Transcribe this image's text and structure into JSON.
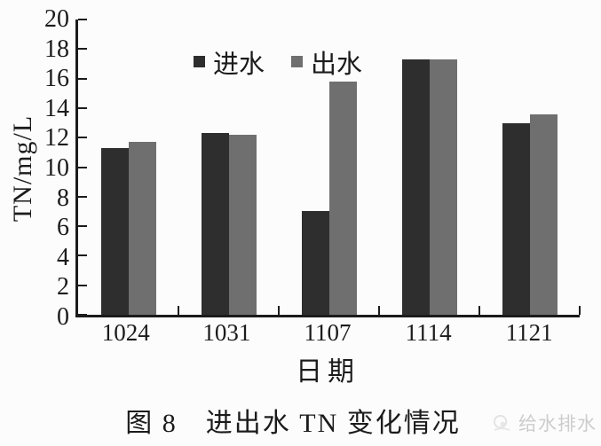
{
  "figure": {
    "caption": "图 8　进出水 TN 变化情况",
    "watermark": "给水排水"
  },
  "chart_data": {
    "type": "bar",
    "title": "图 8 进出水 TN 变化情况",
    "categories": [
      "1024",
      "1031",
      "1107",
      "1114",
      "1121"
    ],
    "series": [
      {
        "name": "进水",
        "color": "#2e2e2e",
        "values": [
          11.3,
          12.3,
          7.0,
          17.3,
          13.0
        ]
      },
      {
        "name": "出水",
        "color": "#6f6f6f",
        "values": [
          11.7,
          12.2,
          15.8,
          17.3,
          13.6
        ]
      }
    ],
    "xlabel": "日期",
    "ylabel": "TN/mg/L",
    "ylim": [
      0,
      20
    ],
    "ytick_step": 2,
    "yticks": [
      0,
      2,
      4,
      6,
      8,
      10,
      12,
      14,
      16,
      18,
      20
    ],
    "legend": [
      "进水",
      "出水"
    ],
    "legend_position": "inside-top-left",
    "grid": false,
    "axis_color": "#1b1b1b",
    "background_color": "#fcfcfc"
  }
}
